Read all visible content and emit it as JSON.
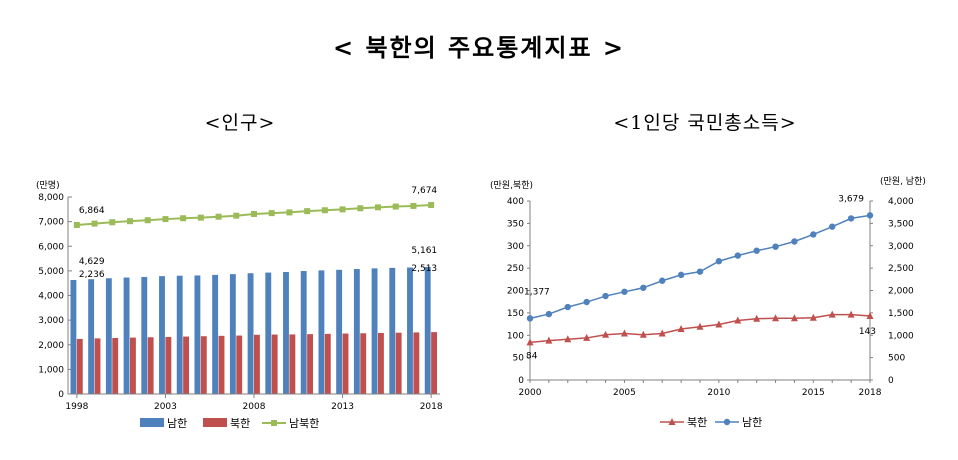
{
  "page": {
    "title": "< 북한의 주요통계지표 >"
  },
  "colors": {
    "south": "#4f81bd",
    "north": "#c0504d",
    "total": "#9bbb59",
    "axis": "#808080",
    "grid": "#e0e0e0"
  },
  "chart_data": [
    {
      "type": "bar",
      "title": "<인구>",
      "unit_label": "(만명)",
      "ylim": [
        0,
        8000
      ],
      "yticks": [
        "0",
        "1,000",
        "2,000",
        "3,000",
        "4,000",
        "5,000",
        "6,000",
        "7,000",
        "8,000"
      ],
      "xticks": [
        "1998",
        "2003",
        "2008",
        "2013",
        "2018"
      ],
      "categories": [
        "1998",
        "1999",
        "2000",
        "2001",
        "2002",
        "2003",
        "2004",
        "2005",
        "2006",
        "2007",
        "2008",
        "2009",
        "2010",
        "2011",
        "2012",
        "2013",
        "2014",
        "2015",
        "2016",
        "2017",
        "2018"
      ],
      "series": [
        {
          "name": "남한",
          "kind": "bar",
          "values": [
            4629,
            4662,
            4701,
            4729,
            4752,
            4786,
            4804,
            4814,
            4837,
            4868,
            4905,
            4931,
            4955,
            4994,
            5020,
            5043,
            5075,
            5102,
            5122,
            5136,
            5161
          ]
        },
        {
          "name": "북한",
          "kind": "bar",
          "values": [
            2236,
            2258,
            2275,
            2290,
            2304,
            2318,
            2333,
            2347,
            2362,
            2373,
            2406,
            2414,
            2419,
            2431,
            2443,
            2455,
            2466,
            2478,
            2490,
            2501,
            2513
          ]
        },
        {
          "name": "남북한",
          "kind": "line",
          "values": [
            6864,
            6920,
            6976,
            7019,
            7056,
            7104,
            7137,
            7161,
            7199,
            7241,
            7311,
            7345,
            7374,
            7425,
            7463,
            7498,
            7541,
            7580,
            7612,
            7637,
            7674
          ]
        }
      ],
      "data_labels": [
        {
          "text": "6,864"
        },
        {
          "text": "4,629"
        },
        {
          "text": "2,236"
        },
        {
          "text": "7,674"
        },
        {
          "text": "5,161"
        },
        {
          "text": "2,513"
        }
      ],
      "legend": [
        "남한",
        "북한",
        "남북한"
      ],
      "legend_position": "bottom"
    },
    {
      "type": "line",
      "title": "<1인당 국민총소득>",
      "unit_label_left": "(만원,북한)",
      "unit_label_right": "(만원, 남한)",
      "ylim_left": [
        0,
        400
      ],
      "ylim_right": [
        0,
        4000
      ],
      "yticks_left": [
        "0",
        "50",
        "100",
        "150",
        "200",
        "250",
        "300",
        "350",
        "400"
      ],
      "yticks_right": [
        "0",
        "500",
        "1,000",
        "1,500",
        "2,000",
        "2,500",
        "3,000",
        "3,500",
        "4,000"
      ],
      "xticks": [
        "2000",
        "2005",
        "2010",
        "2015",
        "2018"
      ],
      "x": [
        2000,
        2001,
        2002,
        2003,
        2004,
        2005,
        2006,
        2007,
        2008,
        2009,
        2010,
        2011,
        2012,
        2013,
        2014,
        2015,
        2016,
        2017,
        2018
      ],
      "series": [
        {
          "name": "북한",
          "axis": "left",
          "values": [
            84,
            88,
            91,
            94,
            101,
            104,
            101,
            104,
            114,
            119,
            124,
            133,
            137,
            138,
            138,
            139,
            146,
            146,
            143
          ]
        },
        {
          "name": "남한",
          "axis": "right",
          "values": [
            1377,
            1473,
            1631,
            1742,
            1876,
            1971,
            2061,
            2218,
            2349,
            2421,
            2654,
            2780,
            2889,
            2979,
            3095,
            3252,
            3427,
            3611,
            3679
          ]
        }
      ],
      "data_labels": [
        {
          "text": "1,377"
        },
        {
          "text": "84"
        },
        {
          "text": "3,679"
        },
        {
          "text": "143"
        }
      ],
      "legend": [
        "북한",
        "남한"
      ],
      "legend_position": "bottom"
    }
  ]
}
